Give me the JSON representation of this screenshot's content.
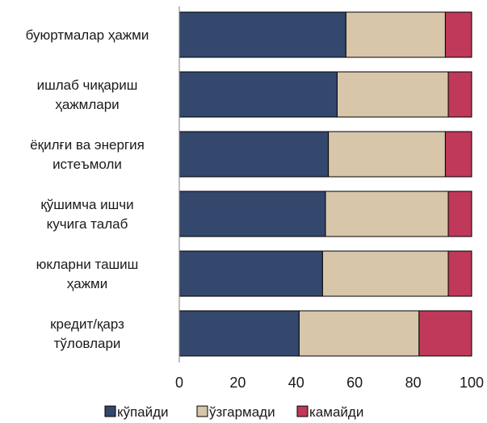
{
  "chart_data": {
    "type": "bar",
    "orientation": "horizontal",
    "stacked": true,
    "categories": [
      [
        "буюртмалар ҳажми"
      ],
      [
        "ишлаб чиқариш",
        "ҳажмлари"
      ],
      [
        "ёқилғи ва энергия",
        "истеъмоли"
      ],
      [
        "қўшимча ишчи",
        "кучига талаб"
      ],
      [
        "юкларни ташиш",
        "ҳажми"
      ],
      [
        "кредит/қарз",
        "тўловлари"
      ]
    ],
    "series": [
      {
        "name": "кўпайди",
        "color": "#34476c",
        "values": [
          57,
          54,
          51,
          50,
          49,
          41
        ]
      },
      {
        "name": "ўзгармади",
        "color": "#d8c6aa",
        "values": [
          34,
          38,
          40,
          42,
          43,
          41
        ]
      },
      {
        "name": "камайди",
        "color": "#c0395a",
        "values": [
          9,
          8,
          9,
          8,
          8,
          18
        ]
      }
    ],
    "xlim": [
      0,
      100
    ],
    "xticks": [
      0,
      20,
      40,
      60,
      80,
      100
    ],
    "grid": false,
    "legend_position": "bottom"
  }
}
